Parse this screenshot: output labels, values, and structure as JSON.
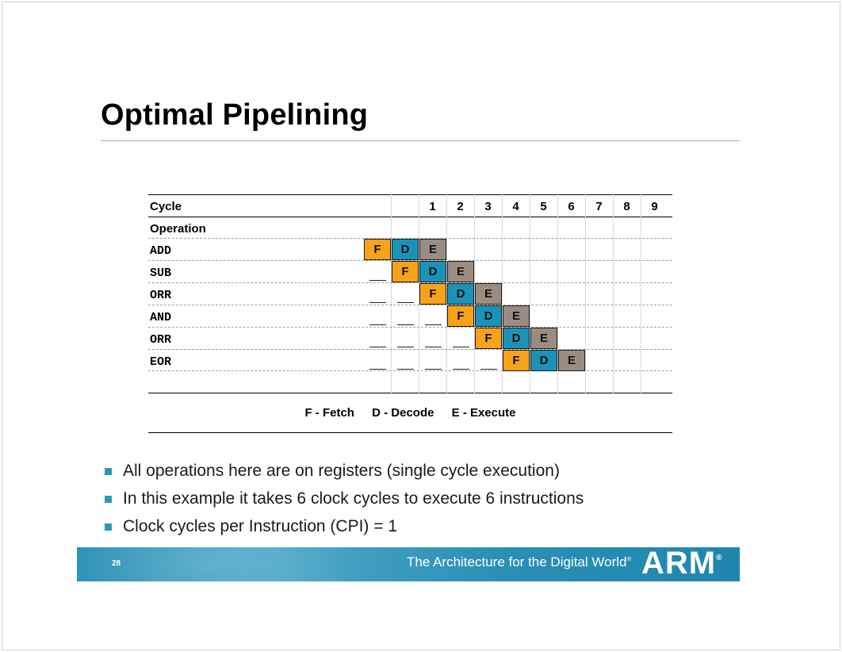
{
  "slide": {
    "title": "Optimal Pipelining",
    "page_number": "28"
  },
  "table": {
    "cycle_label": "Cycle",
    "operation_label": "Operation",
    "cycles": [
      "1",
      "2",
      "3",
      "4",
      "5",
      "6",
      "7",
      "8",
      "9"
    ],
    "operations": [
      "ADD",
      "SUB",
      "ORR",
      "AND",
      "ORR",
      "EOR"
    ],
    "stages": [
      "F",
      "D",
      "E"
    ],
    "stage_colors": {
      "F": "#f7a21b",
      "D": "#1b93b8",
      "E": "#9b8c82"
    },
    "legend": [
      "F - Fetch",
      "D - Decode",
      "E - Execute"
    ]
  },
  "bullets": [
    "All operations here are on registers (single cycle execution)",
    "In this example it takes 6 clock cycles to execute 6 instructions",
    "Clock cycles per Instruction (CPI) = 1"
  ],
  "footer": {
    "tagline": "The Architecture for the Digital World",
    "tagline_mark": "®",
    "logo": "ARM",
    "logo_mark": "®",
    "colors": {
      "band": "#2b90b6",
      "bullet": "#2a9ab4"
    }
  }
}
